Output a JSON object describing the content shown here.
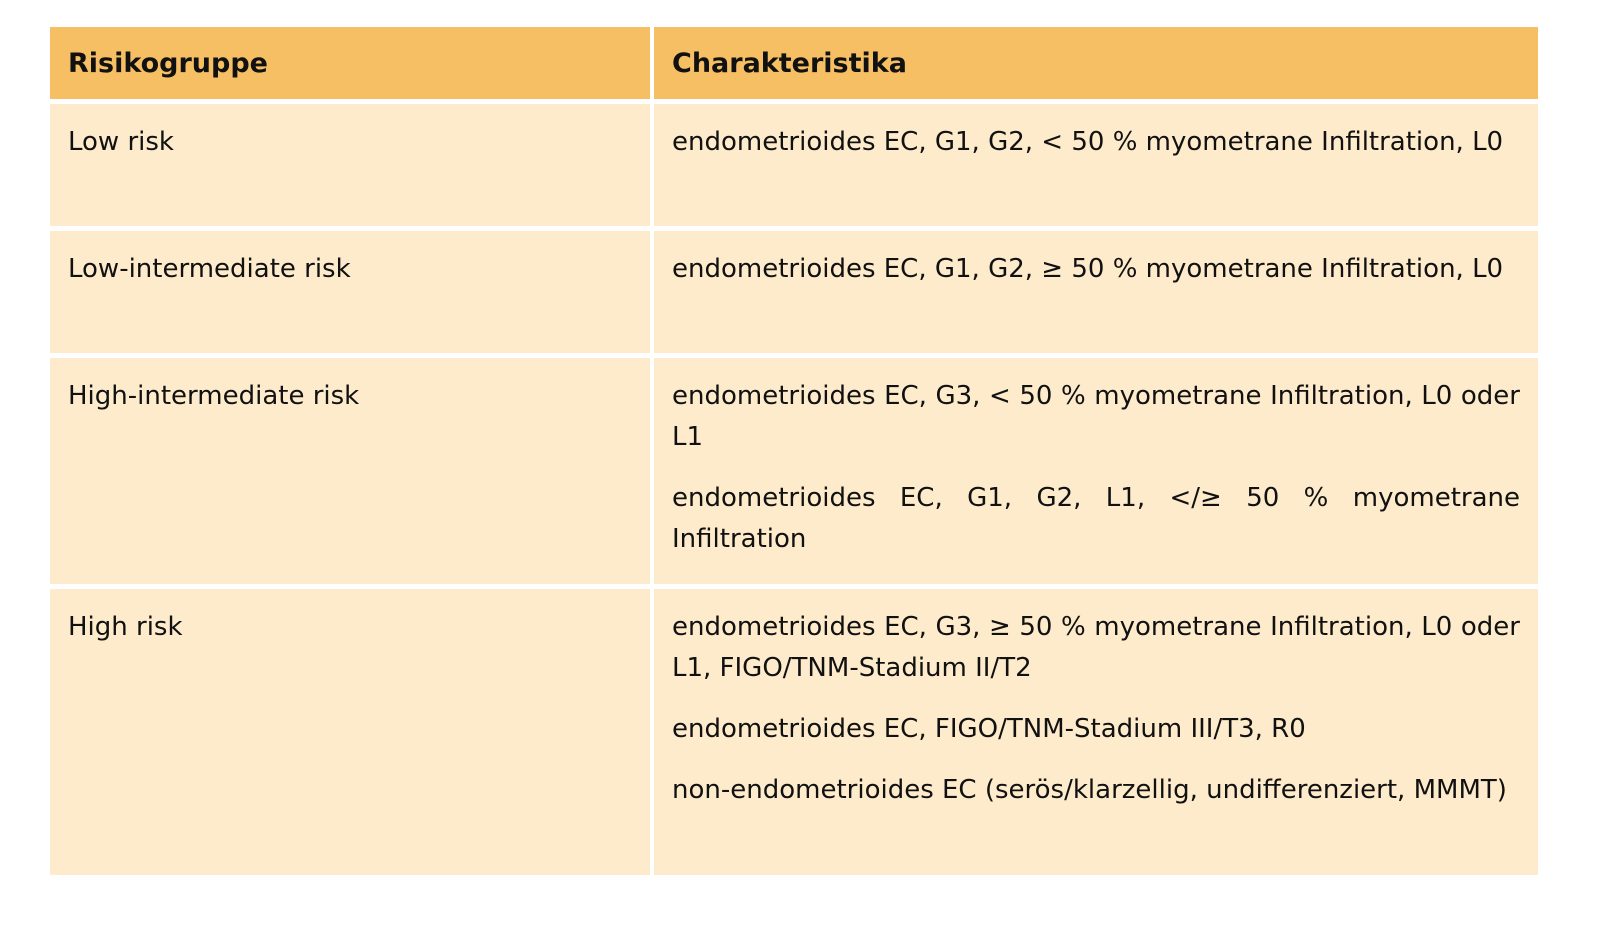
{
  "table": {
    "headers": [
      "Risikogruppe",
      "Charakteristika"
    ],
    "rows": [
      {
        "group": "Low risk",
        "items": [
          "endometrioides EC, G1, G2, < 50 % myometrane Infiltration, L0"
        ]
      },
      {
        "group": "Low-intermediate risk",
        "items": [
          "endometrioides EC, G1, G2, ≥ 50 % myometrane Infiltration, L0"
        ]
      },
      {
        "group": "High-intermediate risk",
        "items": [
          "endometrioides EC, G3, < 50 % myometrane Infiltration, L0 oder L1",
          "endometrioides EC, G1, G2, L1, </≥ 50 % myometrane Infiltration"
        ]
      },
      {
        "group": "High risk",
        "items": [
          "endometrioides EC, G3, ≥ 50 % myometrane Infiltration, L0 oder L1, FIGO/TNM-Stadium II/T2",
          "endometrioides EC, FIGO/TNM-Stadium III/T3, R0",
          "non-endometrioides EC (serös/klarzellig, undifferenziert, MMMT)"
        ]
      }
    ]
  },
  "colors": {
    "header": "#F6BF63",
    "cell": "#FDEBCB"
  }
}
